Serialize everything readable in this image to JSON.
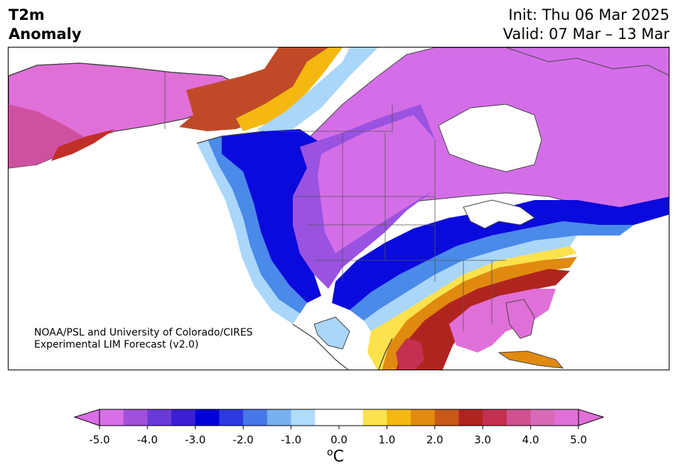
{
  "title": {
    "left_line1": "T2m",
    "left_line2": "Anomaly",
    "init": "Init: Thu 06 Mar 2025",
    "valid": "Valid: 07 Mar – 13 Mar"
  },
  "credit": {
    "line1": "NOAA/PSL and University of Colorado/CIRES",
    "line2": "Experimental LIM Forecast (v2.0)"
  },
  "colorbar": {
    "unit_sup": "o",
    "unit": "C",
    "ticks": [
      "-5.0",
      "-4.0",
      "-3.0",
      "-2.0",
      "-1.0",
      "0.0",
      "1.0",
      "2.0",
      "3.0",
      "4.0",
      "5.0"
    ],
    "colors": [
      "#d86ee6",
      "#a050dc",
      "#6a3ad8",
      "#3a1ed2",
      "#0000d8",
      "#2a3ae0",
      "#4878e8",
      "#78b0f0",
      "#b0dcfc",
      "#ffffff",
      "#ffffff",
      "#fce24c",
      "#f4b810",
      "#e08a10",
      "#c85818",
      "#b02420",
      "#c43050",
      "#d05090",
      "#d868b8",
      "#e070d8"
    ],
    "under_color": "#d86ee6",
    "over_color": "#e070d8"
  },
  "palette": {
    "cold_magenta": "#d46ee8",
    "cold_purple": "#8a4ae0",
    "cold_blue": "#0a0adc",
    "cool_blue": "#4a8ae8",
    "light_blue": "#aad6fa",
    "yellow": "#fce24c",
    "orange": "#e08a10",
    "red": "#b02420",
    "warm_pink": "#d858b0",
    "warm_magenta": "#e070d8"
  }
}
